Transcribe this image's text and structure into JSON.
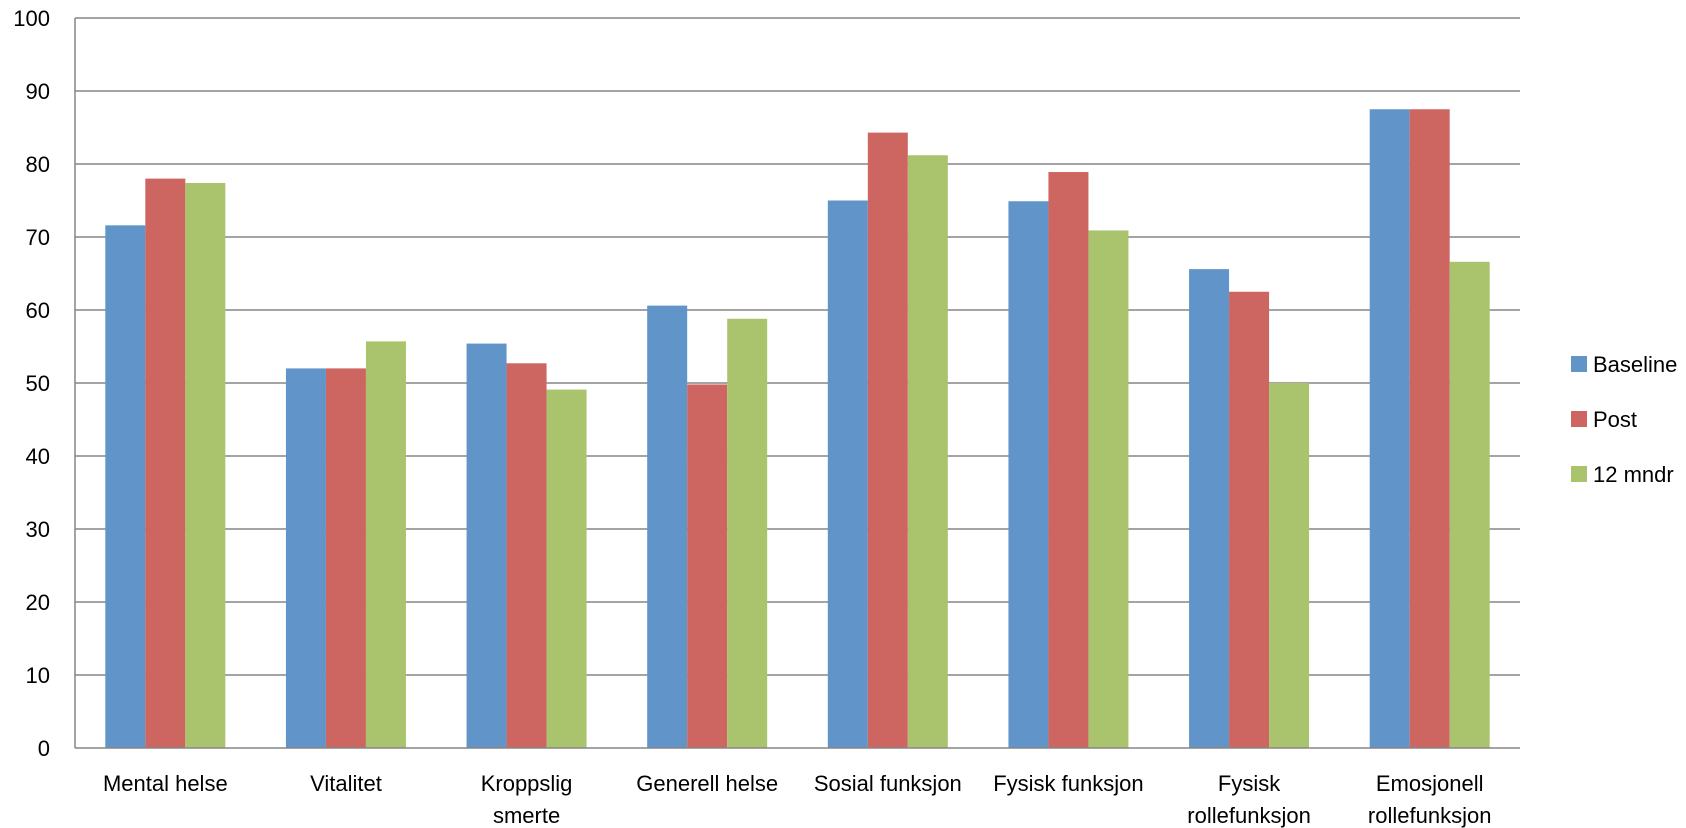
{
  "chart_data": {
    "type": "bar",
    "title": "",
    "xlabel": "",
    "ylabel": "",
    "ylim": [
      0,
      100
    ],
    "yticks": [
      0,
      10,
      20,
      30,
      40,
      50,
      60,
      70,
      80,
      90,
      100
    ],
    "grid": true,
    "legend_position": "right",
    "categories": [
      [
        "Mental helse"
      ],
      [
        "Vitalitet"
      ],
      [
        "Kroppslig",
        "smerte"
      ],
      [
        "Generell helse"
      ],
      [
        "Sosial funksjon"
      ],
      [
        "Fysisk funksjon"
      ],
      [
        "Fysisk",
        "rollefunksjon"
      ],
      [
        "Emosjonell",
        "rollefunksjon"
      ]
    ],
    "series": [
      {
        "name": "Baseline",
        "color": "#6195c9",
        "values": [
          71.6,
          52.0,
          55.4,
          60.6,
          75.0,
          74.9,
          65.6,
          87.5
        ]
      },
      {
        "name": "Post",
        "color": "#cd6560",
        "values": [
          78.0,
          52.0,
          52.7,
          49.8,
          84.3,
          78.9,
          62.5,
          87.5
        ]
      },
      {
        "name": "12 mndr",
        "color": "#aac46e",
        "values": [
          77.4,
          55.7,
          49.1,
          58.8,
          81.2,
          70.9,
          50.0,
          66.6
        ]
      }
    ]
  }
}
